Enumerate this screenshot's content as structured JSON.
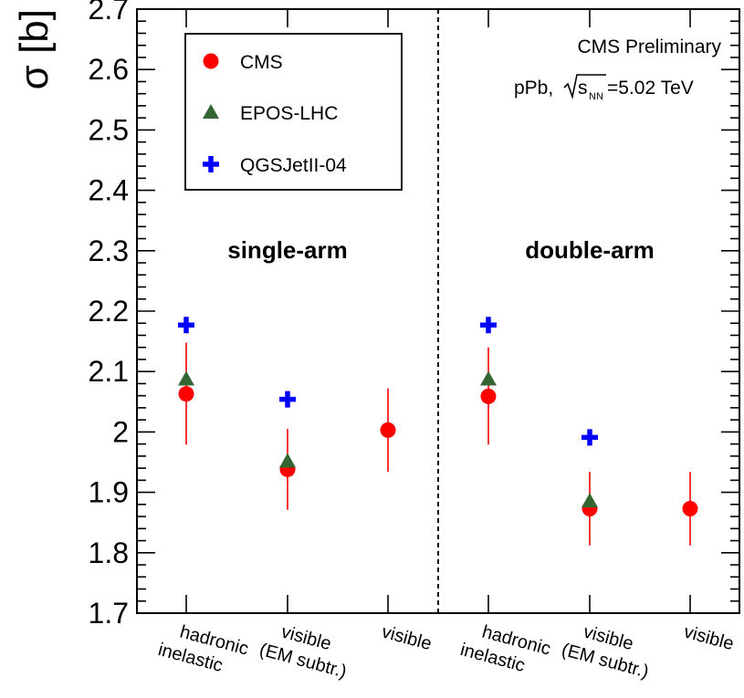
{
  "chart_data": {
    "type": "scatter",
    "ylabel": "σ [b]",
    "ylim": [
      1.7,
      2.7
    ],
    "yticks": [
      "1.7",
      "1.8",
      "1.9",
      "2",
      "2.1",
      "2.2",
      "2.3",
      "2.4",
      "2.5",
      "2.6",
      "2.7"
    ],
    "categories": [
      {
        "line1": "hadronic",
        "line2": "inelastic"
      },
      {
        "line1": "visible",
        "line2": "(EM subtr.)"
      },
      {
        "line1": "visible",
        "line2": ""
      },
      {
        "line1": "hadronic",
        "line2": "inelastic"
      },
      {
        "line1": "visible",
        "line2": "(EM subtr.)"
      },
      {
        "line1": "visible",
        "line2": ""
      }
    ],
    "group_labels": [
      "single-arm",
      "double-arm"
    ],
    "annotations": {
      "line1": "CMS Preliminary",
      "line2_prefix": "pPb, ",
      "sqrt_s": "s",
      "sqrt_sub": "NN",
      "line2_suffix": "=5.02 TeV"
    },
    "legend_position": "top-left",
    "series": [
      {
        "name": "CMS",
        "marker": "circle",
        "color": "#ff0000",
        "points": [
          {
            "cat": 0,
            "y": 2.063,
            "err_low": 1.979,
            "err_high": 2.148
          },
          {
            "cat": 1,
            "y": 1.938,
            "err_low": 1.871,
            "err_high": 2.005
          },
          {
            "cat": 2,
            "y": 2.003,
            "err_low": 1.934,
            "err_high": 2.072
          },
          {
            "cat": 3,
            "y": 2.059,
            "err_low": 1.979,
            "err_high": 2.14
          },
          {
            "cat": 4,
            "y": 1.873,
            "err_low": 1.812,
            "err_high": 1.934
          },
          {
            "cat": 5,
            "y": 1.873,
            "err_low": 1.812,
            "err_high": 1.934
          }
        ]
      },
      {
        "name": "EPOS-LHC",
        "marker": "triangle",
        "color": "#336633",
        "points": [
          {
            "cat": 0,
            "y": 2.086
          },
          {
            "cat": 1,
            "y": 1.95
          },
          {
            "cat": 3,
            "y": 2.086
          },
          {
            "cat": 4,
            "y": 1.884
          }
        ]
      },
      {
        "name": "QGSJetII-04",
        "marker": "cross",
        "color": "#0000ff",
        "points": [
          {
            "cat": 0,
            "y": 2.177
          },
          {
            "cat": 1,
            "y": 2.054
          },
          {
            "cat": 3,
            "y": 2.177
          },
          {
            "cat": 4,
            "y": 1.991
          }
        ]
      }
    ]
  }
}
